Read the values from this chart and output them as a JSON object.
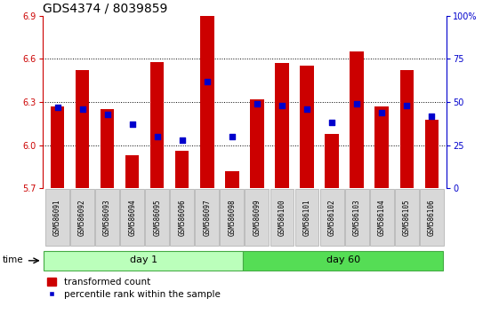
{
  "title": "GDS4374 / 8039859",
  "samples": [
    "GSM586091",
    "GSM586092",
    "GSM586093",
    "GSM586094",
    "GSM586095",
    "GSM586096",
    "GSM586097",
    "GSM586098",
    "GSM586099",
    "GSM586100",
    "GSM586101",
    "GSM586102",
    "GSM586103",
    "GSM586104",
    "GSM586105",
    "GSM586106"
  ],
  "bar_values": [
    6.27,
    6.52,
    6.25,
    5.93,
    6.58,
    5.96,
    6.9,
    5.82,
    6.32,
    6.57,
    6.55,
    6.08,
    6.65,
    6.27,
    6.52,
    6.18
  ],
  "dot_values": [
    47,
    46,
    43,
    37,
    30,
    28,
    62,
    30,
    49,
    48,
    46,
    38,
    49,
    44,
    48,
    42
  ],
  "bar_base": 5.7,
  "ylim_left": [
    5.7,
    6.9
  ],
  "ylim_right": [
    0,
    100
  ],
  "yticks_left": [
    5.7,
    6.0,
    6.3,
    6.6,
    6.9
  ],
  "yticks_right": [
    0,
    25,
    50,
    75,
    100
  ],
  "bar_color": "#cc0000",
  "dot_color": "#0000cc",
  "day1_samples": 8,
  "day60_samples": 8,
  "day1_label": "day 1",
  "day60_label": "day 60",
  "day1_color": "#bbffbb",
  "day60_color": "#55dd55",
  "time_label": "time",
  "legend_bar_label": "transformed count",
  "legend_dot_label": "percentile rank within the sample",
  "tick_color_left": "#cc0000",
  "tick_color_right": "#0000cc",
  "label_area_bg": "#d8d8d8",
  "title_fontsize": 10,
  "axis_fontsize": 7,
  "sample_fontsize": 5.5,
  "day_fontsize": 8,
  "legend_fontsize": 7.5
}
